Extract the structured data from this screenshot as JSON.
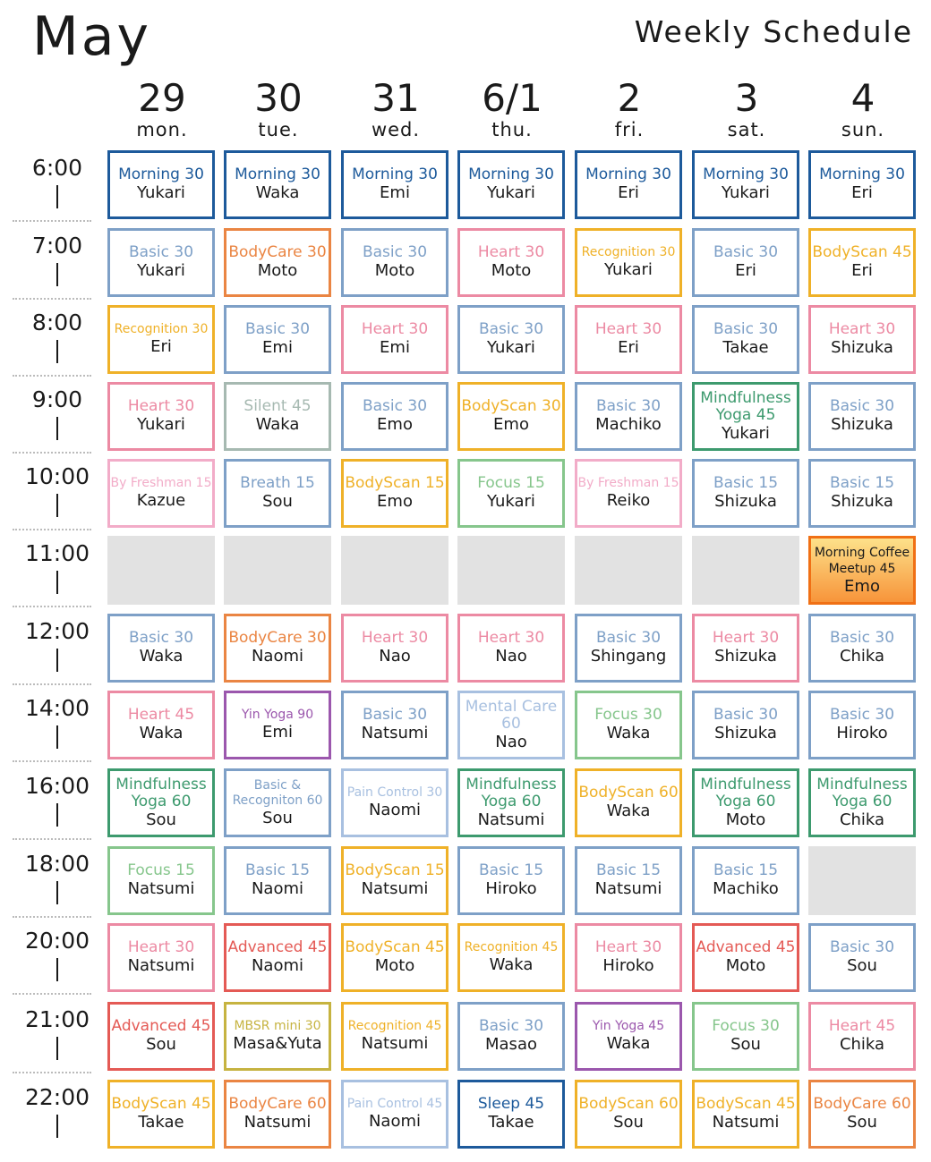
{
  "header": {
    "month": "May",
    "subtitle": "Weekly Schedule"
  },
  "days": [
    {
      "num": "29",
      "name": "mon."
    },
    {
      "num": "30",
      "name": "tue."
    },
    {
      "num": "31",
      "name": "wed."
    },
    {
      "num": "6/1",
      "name": "thu."
    },
    {
      "num": "2",
      "name": "fri."
    },
    {
      "num": "3",
      "name": "sat."
    },
    {
      "num": "4",
      "name": "sun."
    }
  ],
  "times": [
    "6:00",
    "7:00",
    "8:00",
    "9:00",
    "10:00",
    "11:00",
    "12:00",
    "14:00",
    "16:00",
    "18:00",
    "20:00",
    "21:00",
    "22:00"
  ],
  "colors": {
    "navy": "#1d5a9b",
    "blue": "#7ea0c7",
    "orange": "#ea8543",
    "yellow": "#efb128",
    "pink": "#ec8aa3",
    "sage": "#a6b9b1",
    "green": "#3d9a6e",
    "lightgreen": "#86c68c",
    "lightpink": "#f2acc8",
    "purple": "#9b57ad",
    "paleblue": "#a8c0e0",
    "red": "#e45a55",
    "olive": "#c6b340"
  },
  "rows": [
    [
      {
        "class": "Morning 30",
        "instructor": "Yukari",
        "color": "navy"
      },
      {
        "class": "Morning 30",
        "instructor": "Waka",
        "color": "navy"
      },
      {
        "class": "Morning 30",
        "instructor": "Emi",
        "color": "navy"
      },
      {
        "class": "Morning 30",
        "instructor": "Yukari",
        "color": "navy"
      },
      {
        "class": "Morning 30",
        "instructor": "Eri",
        "color": "navy"
      },
      {
        "class": "Morning 30",
        "instructor": "Yukari",
        "color": "navy"
      },
      {
        "class": "Morning 30",
        "instructor": "Eri",
        "color": "navy"
      }
    ],
    [
      {
        "class": "Basic 30",
        "instructor": "Yukari",
        "color": "blue"
      },
      {
        "class": "BodyCare 30",
        "instructor": "Moto",
        "color": "orange"
      },
      {
        "class": "Basic 30",
        "instructor": "Moto",
        "color": "blue"
      },
      {
        "class": "Heart 30",
        "instructor": "Moto",
        "color": "pink"
      },
      {
        "class": "Recognition 30",
        "instructor": "Yukari",
        "color": "yellow",
        "small": true
      },
      {
        "class": "Basic 30",
        "instructor": "Eri",
        "color": "blue"
      },
      {
        "class": "BodyScan 45",
        "instructor": "Eri",
        "color": "yellow"
      }
    ],
    [
      {
        "class": "Recognition 30",
        "instructor": "Eri",
        "color": "yellow",
        "small": true
      },
      {
        "class": "Basic 30",
        "instructor": "Emi",
        "color": "blue"
      },
      {
        "class": "Heart 30",
        "instructor": "Emi",
        "color": "pink"
      },
      {
        "class": "Basic 30",
        "instructor": "Yukari",
        "color": "blue"
      },
      {
        "class": "Heart 30",
        "instructor": "Eri",
        "color": "pink"
      },
      {
        "class": "Basic 30",
        "instructor": "Takae",
        "color": "blue"
      },
      {
        "class": "Heart 30",
        "instructor": "Shizuka",
        "color": "pink"
      }
    ],
    [
      {
        "class": "Heart 30",
        "instructor": "Yukari",
        "color": "pink"
      },
      {
        "class": "Silent 45",
        "instructor": "Waka",
        "color": "sage"
      },
      {
        "class": "Basic 30",
        "instructor": "Emo",
        "color": "blue"
      },
      {
        "class": "BodyScan 30",
        "instructor": "Emo",
        "color": "yellow"
      },
      {
        "class": "Basic 30",
        "instructor": "Machiko",
        "color": "blue"
      },
      {
        "class": "Mindfulness Yoga 45",
        "instructor": "Yukari",
        "color": "green",
        "multi": true
      },
      {
        "class": "Basic 30",
        "instructor": "Shizuka",
        "color": "blue"
      }
    ],
    [
      {
        "class": "By Freshman 15",
        "instructor": "Kazue",
        "color": "lightpink",
        "small": true
      },
      {
        "class": "Breath 15",
        "instructor": "Sou",
        "color": "blue"
      },
      {
        "class": "BodyScan 15",
        "instructor": "Emo",
        "color": "yellow"
      },
      {
        "class": "Focus 15",
        "instructor": "Yukari",
        "color": "lightgreen"
      },
      {
        "class": "By Freshman 15",
        "instructor": "Reiko",
        "color": "lightpink",
        "small": true
      },
      {
        "class": "Basic 15",
        "instructor": "Shizuka",
        "color": "blue"
      },
      {
        "class": "Basic 15",
        "instructor": "Shizuka",
        "color": "blue"
      }
    ],
    [
      {
        "empty": true
      },
      {
        "empty": true
      },
      {
        "empty": true
      },
      {
        "empty": true
      },
      {
        "empty": true
      },
      {
        "empty": true
      },
      {
        "class": "Morning Coffee Meetup 45",
        "instructor": "Emo",
        "color": "orange",
        "highlight": true
      }
    ],
    [
      {
        "class": "Basic 30",
        "instructor": "Waka",
        "color": "blue"
      },
      {
        "class": "BodyCare 30",
        "instructor": "Naomi",
        "color": "orange"
      },
      {
        "class": "Heart 30",
        "instructor": "Nao",
        "color": "pink"
      },
      {
        "class": "Heart 30",
        "instructor": "Nao",
        "color": "pink"
      },
      {
        "class": "Basic 30",
        "instructor": "Shingang",
        "color": "blue"
      },
      {
        "class": "Heart 30",
        "instructor": "Shizuka",
        "color": "pink"
      },
      {
        "class": "Basic 30",
        "instructor": "Chika",
        "color": "blue"
      }
    ],
    [
      {
        "class": "Heart 45",
        "instructor": "Waka",
        "color": "pink"
      },
      {
        "class": "Yin Yoga 90",
        "instructor": "Emi",
        "color": "purple",
        "small": true
      },
      {
        "class": "Basic 30",
        "instructor": "Natsumi",
        "color": "blue"
      },
      {
        "class": "Mental Care 60",
        "instructor": "Nao",
        "color": "paleblue",
        "multi": true
      },
      {
        "class": "Focus 30",
        "instructor": "Waka",
        "color": "lightgreen"
      },
      {
        "class": "Basic 30",
        "instructor": "Shizuka",
        "color": "blue"
      },
      {
        "class": "Basic 30",
        "instructor": "Hiroko",
        "color": "blue"
      }
    ],
    [
      {
        "class": "Mindfulness Yoga 60",
        "instructor": "Sou",
        "color": "green",
        "multi": true
      },
      {
        "class": "Basic & Recogniton 60",
        "instructor": "Sou",
        "color": "blue",
        "multi": true,
        "small": true
      },
      {
        "class": "Pain Control 30",
        "instructor": "Naomi",
        "color": "paleblue",
        "small": true
      },
      {
        "class": "Mindfulness Yoga 60",
        "instructor": "Natsumi",
        "color": "green",
        "multi": true
      },
      {
        "class": "BodyScan 60",
        "instructor": "Waka",
        "color": "yellow"
      },
      {
        "class": "Mindfulness Yoga 60",
        "instructor": "Moto",
        "color": "green",
        "multi": true
      },
      {
        "class": "Mindfulness Yoga 60",
        "instructor": "Chika",
        "color": "green",
        "multi": true
      }
    ],
    [
      {
        "class": "Focus 15",
        "instructor": "Natsumi",
        "color": "lightgreen"
      },
      {
        "class": "Basic 15",
        "instructor": "Naomi",
        "color": "blue"
      },
      {
        "class": "BodyScan 15",
        "instructor": "Natsumi",
        "color": "yellow"
      },
      {
        "class": "Basic 15",
        "instructor": "Hiroko",
        "color": "blue"
      },
      {
        "class": "Basic 15",
        "instructor": "Natsumi",
        "color": "blue"
      },
      {
        "class": "Basic 15",
        "instructor": "Machiko",
        "color": "blue"
      },
      {
        "empty": true
      }
    ],
    [
      {
        "class": "Heart 30",
        "instructor": "Natsumi",
        "color": "pink"
      },
      {
        "class": "Advanced 45",
        "instructor": "Naomi",
        "color": "red"
      },
      {
        "class": "BodyScan 45",
        "instructor": "Moto",
        "color": "yellow"
      },
      {
        "class": "Recognition 45",
        "instructor": "Waka",
        "color": "yellow",
        "small": true
      },
      {
        "class": "Heart 30",
        "instructor": "Hiroko",
        "color": "pink"
      },
      {
        "class": "Advanced 45",
        "instructor": "Moto",
        "color": "red"
      },
      {
        "class": "Basic 30",
        "instructor": "Sou",
        "color": "blue"
      }
    ],
    [
      {
        "class": "Advanced 45",
        "instructor": "Sou",
        "color": "red"
      },
      {
        "class": "MBSR mini 30",
        "instructor": "Masa&Yuta",
        "color": "olive",
        "small": true
      },
      {
        "class": "Recognition 45",
        "instructor": "Natsumi",
        "color": "yellow",
        "small": true
      },
      {
        "class": "Basic 30",
        "instructor": "Masao",
        "color": "blue"
      },
      {
        "class": "Yin Yoga 45",
        "instructor": "Waka",
        "color": "purple",
        "small": true
      },
      {
        "class": "Focus 30",
        "instructor": "Sou",
        "color": "lightgreen"
      },
      {
        "class": "Heart 45",
        "instructor": "Chika",
        "color": "pink"
      }
    ],
    [
      {
        "class": "BodyScan 45",
        "instructor": "Takae",
        "color": "yellow"
      },
      {
        "class": "BodyCare 60",
        "instructor": "Natsumi",
        "color": "orange"
      },
      {
        "class": "Pain Control 45",
        "instructor": "Naomi",
        "color": "paleblue",
        "small": true
      },
      {
        "class": "Sleep 45",
        "instructor": "Takae",
        "color": "navy"
      },
      {
        "class": "BodyScan 60",
        "instructor": "Sou",
        "color": "yellow"
      },
      {
        "class": "BodyScan 45",
        "instructor": "Natsumi",
        "color": "yellow"
      },
      {
        "class": "BodyCare 60",
        "instructor": "Sou",
        "color": "orange"
      }
    ]
  ]
}
